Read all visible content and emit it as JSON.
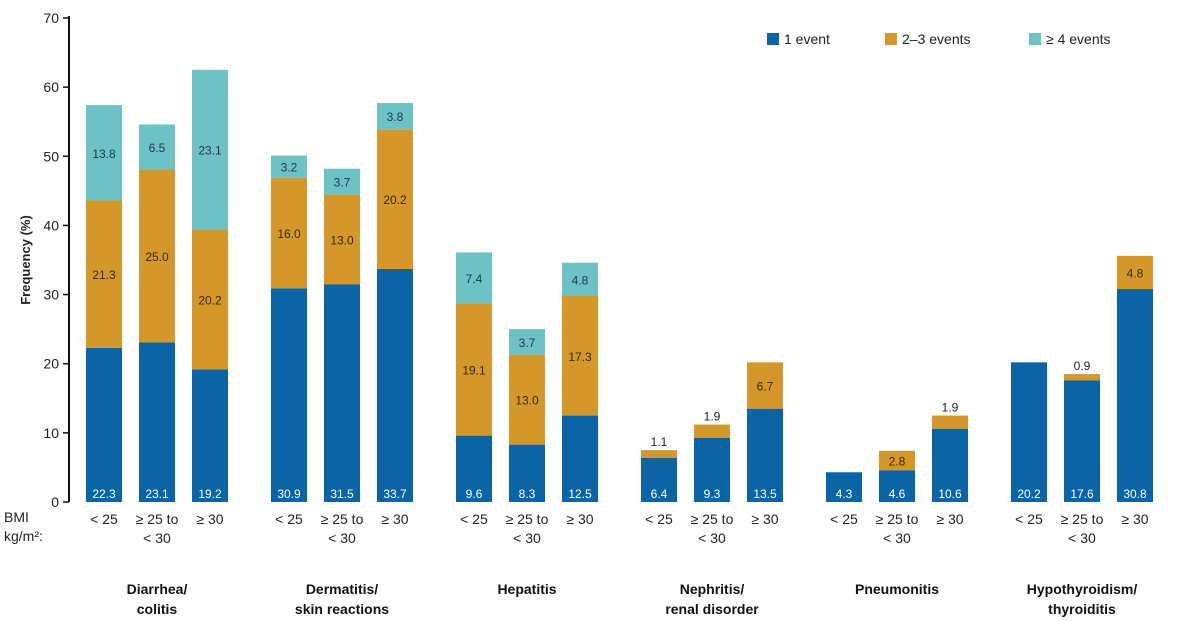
{
  "chart_data": {
    "type": "bar",
    "stacked": true,
    "ylabel": "Frequency (%)",
    "ylim": [
      0,
      70
    ],
    "yticks": [
      0,
      10,
      20,
      30,
      40,
      50,
      60,
      70
    ],
    "bmi_label": [
      "BMI",
      "kg/m²:"
    ],
    "legend_position": "top-right",
    "series": [
      {
        "name": "1 event",
        "color": "#0a64a6"
      },
      {
        "name": "2–3 events",
        "color": "#d4972a"
      },
      {
        "name": "≥ 4 events",
        "color": "#6dc2c6"
      }
    ],
    "groups": [
      {
        "name": [
          "Diarrhea/",
          "colitis"
        ],
        "bars": [
          {
            "category": [
              "< 25"
            ],
            "values": [
              22.3,
              21.3,
              13.8
            ],
            "labels": [
              "22.3",
              "21.3",
              "13.8"
            ]
          },
          {
            "category": [
              "≥ 25 to",
              "< 30"
            ],
            "values": [
              23.1,
              25.0,
              6.5
            ],
            "labels": [
              "23.1",
              "25.0",
              "6.5"
            ]
          },
          {
            "category": [
              "≥ 30"
            ],
            "values": [
              19.2,
              20.2,
              23.1
            ],
            "labels": [
              "19.2",
              "20.2",
              "23.1"
            ]
          }
        ]
      },
      {
        "name": [
          "Dermatitis/",
          "skin reactions"
        ],
        "bars": [
          {
            "category": [
              "< 25"
            ],
            "values": [
              30.9,
              16.0,
              3.2
            ],
            "labels": [
              "30.9",
              "16.0",
              "3.2"
            ]
          },
          {
            "category": [
              "≥ 25 to",
              "< 30"
            ],
            "values": [
              31.5,
              13.0,
              3.7
            ],
            "labels": [
              "31.5",
              "13.0",
              "3.7"
            ]
          },
          {
            "category": [
              "≥ 30"
            ],
            "values": [
              33.7,
              20.2,
              3.8
            ],
            "labels": [
              "33.7",
              "20.2",
              "3.8"
            ]
          }
        ]
      },
      {
        "name": [
          "Hepatitis"
        ],
        "bars": [
          {
            "category": [
              "< 25"
            ],
            "values": [
              9.6,
              19.1,
              7.4
            ],
            "labels": [
              "9.6",
              "19.1",
              "7.4"
            ]
          },
          {
            "category": [
              "≥ 25 to",
              "< 30"
            ],
            "values": [
              8.3,
              13.0,
              3.7
            ],
            "labels": [
              "8.3",
              "13.0",
              "3.7"
            ]
          },
          {
            "category": [
              "≥ 30"
            ],
            "values": [
              12.5,
              17.3,
              4.8
            ],
            "labels": [
              "12.5",
              "17.3",
              "4.8"
            ]
          }
        ]
      },
      {
        "name": [
          "Nephritis/",
          "renal disorder"
        ],
        "bars": [
          {
            "category": [
              "< 25"
            ],
            "values": [
              6.4,
              1.1,
              0
            ],
            "labels": [
              "6.4",
              "1.1",
              ""
            ]
          },
          {
            "category": [
              "≥ 25 to",
              "< 30"
            ],
            "values": [
              9.3,
              1.9,
              0
            ],
            "labels": [
              "9.3",
              "1.9",
              ""
            ]
          },
          {
            "category": [
              "≥ 30"
            ],
            "values": [
              13.5,
              6.7,
              0
            ],
            "labels": [
              "13.5",
              "6.7",
              ""
            ]
          }
        ]
      },
      {
        "name": [
          "Pneumonitis"
        ],
        "bars": [
          {
            "category": [
              "< 25"
            ],
            "values": [
              4.3,
              0,
              0
            ],
            "labels": [
              "4.3",
              "",
              ""
            ]
          },
          {
            "category": [
              "≥ 25 to",
              "< 30"
            ],
            "values": [
              4.6,
              2.8,
              0
            ],
            "labels": [
              "4.6",
              "2.8",
              ""
            ]
          },
          {
            "category": [
              "≥ 30"
            ],
            "values": [
              10.6,
              1.9,
              0
            ],
            "labels": [
              "10.6",
              "1.9",
              ""
            ]
          }
        ]
      },
      {
        "name": [
          "Hypothyroidism/",
          "thyroiditis"
        ],
        "bars": [
          {
            "category": [
              "< 25"
            ],
            "values": [
              20.2,
              0,
              0
            ],
            "labels": [
              "20.2",
              "",
              ""
            ]
          },
          {
            "category": [
              "≥ 25 to",
              "< 30"
            ],
            "values": [
              17.6,
              0.9,
              0
            ],
            "labels": [
              "17.6",
              "0.9",
              ""
            ]
          },
          {
            "category": [
              "≥ 30"
            ],
            "values": [
              30.8,
              4.8,
              0
            ],
            "labels": [
              "30.8",
              "4.8",
              ""
            ]
          }
        ]
      }
    ]
  }
}
